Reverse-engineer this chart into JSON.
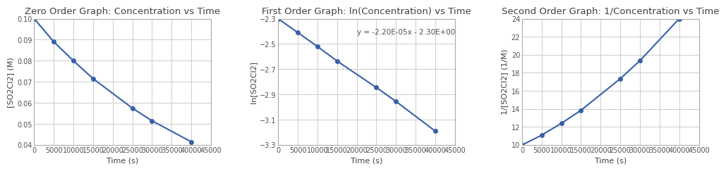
{
  "subplot1": {
    "title": "Zero Order Graph: Concentration vs Time",
    "xlabel": "Time (s)",
    "ylabel": "[SO2Cl2] (M)",
    "x": [
      0,
      5000,
      10000,
      15000,
      25000,
      30000,
      40000
    ],
    "y": [
      0.1,
      0.089,
      0.08,
      0.0715,
      0.0575,
      0.0515,
      0.0415
    ],
    "xlim": [
      0,
      45000
    ],
    "ylim": [
      0.04,
      0.1
    ],
    "yticks": [
      0.04,
      0.05,
      0.06,
      0.07,
      0.08,
      0.09,
      0.1
    ],
    "xticks": [
      0,
      5000,
      10000,
      15000,
      20000,
      25000,
      30000,
      35000,
      40000,
      45000
    ]
  },
  "subplot2": {
    "title": "First Order Graph: ln(Concentration) vs Time",
    "xlabel": "Time (s)",
    "ylabel": "ln[SO2Cl2]",
    "x": [
      0,
      5000,
      10000,
      15000,
      25000,
      30000,
      40000
    ],
    "y": [
      -2.3,
      -2.41,
      -2.52,
      -2.635,
      -2.845,
      -2.955,
      -3.19
    ],
    "xlim": [
      0,
      45000
    ],
    "ylim": [
      -3.3,
      -2.3
    ],
    "yticks": [
      -3.3,
      -3.1,
      -2.9,
      -2.7,
      -2.5,
      -2.3
    ],
    "xticks": [
      0,
      5000,
      10000,
      15000,
      20000,
      25000,
      30000,
      35000,
      40000,
      45000
    ],
    "annotation": "y = -2.20E-05x - 2.30E+00",
    "ann_x": 20000,
    "ann_y": -2.38
  },
  "subplot3": {
    "title": "Second Order Graph: 1/Concentration vs Time",
    "xlabel": "Time (s)",
    "ylabel": "1/[SO2Cl2] (1/M)",
    "x": [
      0,
      5000,
      10000,
      15000,
      25000,
      30000,
      40000
    ],
    "y": [
      10.0,
      11.1,
      12.4,
      13.85,
      17.35,
      19.35,
      24.0
    ],
    "xlim": [
      0,
      45000
    ],
    "ylim": [
      10,
      24
    ],
    "yticks": [
      10,
      12,
      14,
      16,
      18,
      20,
      22,
      24
    ],
    "xticks": [
      0,
      5000,
      10000,
      15000,
      20000,
      25000,
      30000,
      35000,
      40000,
      45000
    ]
  },
  "line_color": "#3860A8",
  "marker": "o",
  "markersize": 4,
  "linewidth": 1.5,
  "title_fontsize": 9.5,
  "label_fontsize": 8,
  "tick_fontsize": 7,
  "background_color": "#ffffff",
  "grid_color": "#cccccc"
}
